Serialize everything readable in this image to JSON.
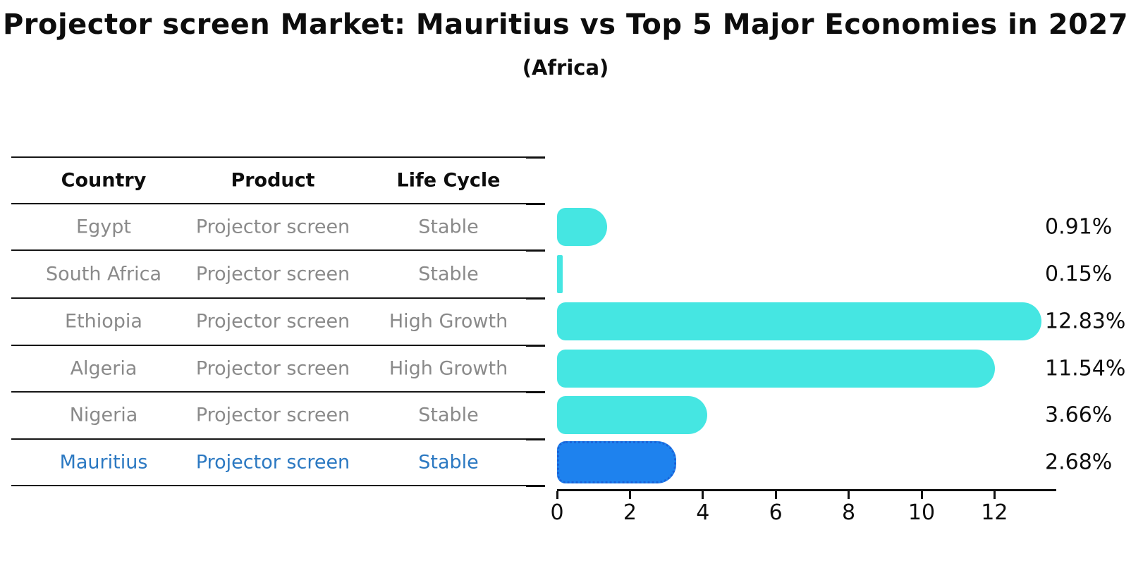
{
  "title": "Projector screen Market: Mauritius vs Top 5 Major Economies in 2027",
  "subtitle": "(Africa)",
  "table": {
    "headers": [
      "Country",
      "Product",
      "Life Cycle"
    ],
    "rows": [
      {
        "country": "Egypt",
        "product": "Projector screen",
        "life_cycle": "Stable",
        "highlighted": false
      },
      {
        "country": "South Africa",
        "product": "Projector screen",
        "life_cycle": "Stable",
        "highlighted": false
      },
      {
        "country": "Ethiopia",
        "product": "Projector screen",
        "life_cycle": "High Growth",
        "highlighted": false
      },
      {
        "country": "Algeria",
        "product": "Projector screen",
        "life_cycle": "High Growth",
        "highlighted": false
      },
      {
        "country": "Nigeria",
        "product": "Projector screen",
        "life_cycle": "Stable",
        "highlighted": false
      },
      {
        "country": "Mauritius",
        "product": "Projector screen",
        "life_cycle": "Stable",
        "highlighted": true
      }
    ]
  },
  "chart_data": {
    "type": "bar",
    "orientation": "horizontal",
    "title": "Projector screen Market: Mauritius vs Top 5 Major Economies in 2027",
    "subtitle": "(Africa)",
    "categories": [
      "Egypt",
      "South Africa",
      "Ethiopia",
      "Algeria",
      "Nigeria",
      "Mauritius"
    ],
    "values": [
      0.91,
      0.15,
      12.83,
      11.54,
      3.66,
      2.68
    ],
    "value_labels": [
      "0.91%",
      "0.15%",
      "12.83%",
      "11.54%",
      "3.66%",
      "2.68%"
    ],
    "x_ticks": [
      "0",
      "2",
      "4",
      "6",
      "8",
      "10",
      "12"
    ],
    "xlim": [
      0,
      13.7
    ],
    "xlabel": "",
    "ylabel": "",
    "grid": false,
    "legend_position": "none",
    "highlight_index": 5
  },
  "colors": {
    "bar_color": "#45e6e2",
    "highlight_bar_color": "#1e82ee",
    "highlight_border_color": "#1a63d8",
    "highlight_text_color": "#2c79c2",
    "table_text_color": "#8a8a8a",
    "header_text_color": "#0d0d0d",
    "line_color": "#161616"
  }
}
